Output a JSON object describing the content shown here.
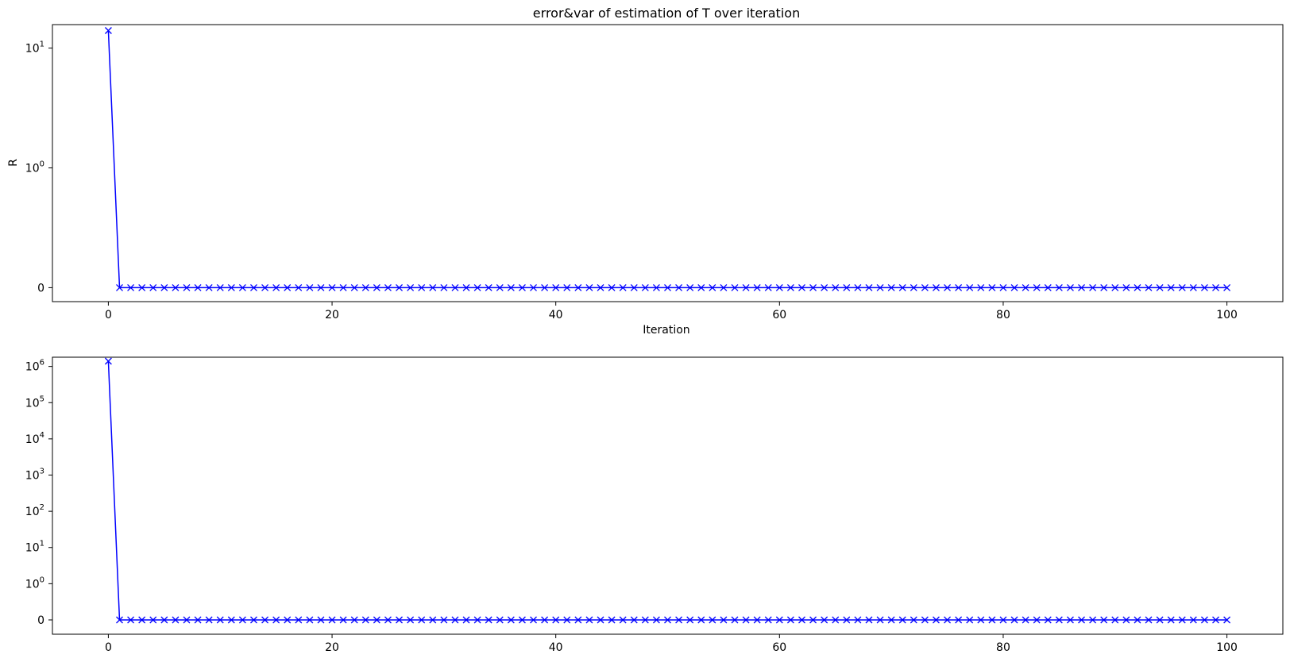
{
  "chart_data": [
    {
      "type": "line",
      "title": "error&var of estimation of T over iteration",
      "xlabel": "Iteration",
      "ylabel": "R",
      "yscale": "symlog",
      "xlim": [
        -5,
        105
      ],
      "x_ticks": [
        0,
        20,
        40,
        60,
        80,
        100
      ],
      "y_ticks": [
        {
          "value": 0,
          "base": "0",
          "exp": ""
        },
        {
          "value": 1,
          "base": "10",
          "exp": "0"
        },
        {
          "value": 10,
          "base": "10",
          "exp": "1"
        }
      ],
      "marker": "x",
      "color": "#0000ff",
      "grid": false,
      "series": [
        {
          "x_start": 0,
          "x_end": 100,
          "first_value": 14,
          "rest_value": 0
        }
      ]
    },
    {
      "type": "line",
      "title": "",
      "xlabel": "",
      "ylabel": "",
      "yscale": "symlog",
      "xlim": [
        -5,
        105
      ],
      "x_ticks": [
        0,
        20,
        40,
        60,
        80,
        100
      ],
      "y_ticks": [
        {
          "value": 0,
          "base": "0",
          "exp": ""
        },
        {
          "value": 1,
          "base": "10",
          "exp": "0"
        },
        {
          "value": 10,
          "base": "10",
          "exp": "1"
        },
        {
          "value": 100,
          "base": "10",
          "exp": "2"
        },
        {
          "value": 1000,
          "base": "10",
          "exp": "3"
        },
        {
          "value": 10000,
          "base": "10",
          "exp": "4"
        },
        {
          "value": 100000,
          "base": "10",
          "exp": "5"
        },
        {
          "value": 1000000,
          "base": "10",
          "exp": "6"
        }
      ],
      "marker": "x",
      "color": "#0000ff",
      "grid": false,
      "series": [
        {
          "x_start": 0,
          "x_end": 100,
          "first_value": 1400000,
          "rest_value": 0
        }
      ]
    }
  ]
}
